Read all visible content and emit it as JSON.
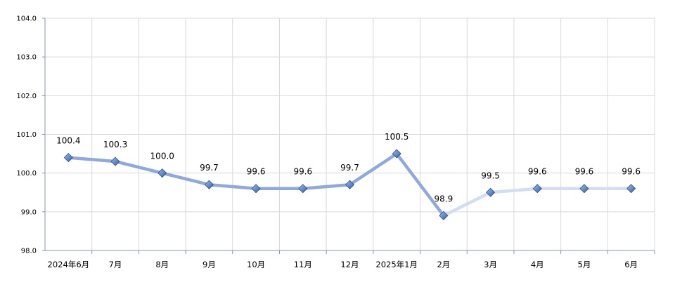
{
  "chart_data": {
    "type": "line",
    "categories": [
      "2024年6月",
      "7月",
      "8月",
      "9月",
      "10月",
      "11月",
      "12月",
      "2025年1月",
      "2月",
      "3月",
      "4月",
      "5月",
      "6月"
    ],
    "values": [
      100.4,
      100.3,
      100.0,
      99.7,
      99.6,
      99.6,
      99.7,
      100.5,
      98.9,
      99.5,
      99.6,
      99.6,
      99.6
    ],
    "data_labels": [
      "100.4",
      "100.3",
      "100.0",
      "99.7",
      "99.6",
      "99.6",
      "99.7",
      "100.5",
      "98.9",
      "99.5",
      "99.6",
      "99.6",
      "99.6"
    ],
    "y_ticks": [
      "98.0",
      "99.0",
      "100.0",
      "101.0",
      "102.0",
      "103.0",
      "104.0"
    ],
    "ylim": [
      98,
      104
    ],
    "grid": true,
    "legend": "none",
    "colors": {
      "line_dark": "#8fa9dc",
      "line_light": "#d3def2",
      "marker_fill": "#4a7cc2",
      "marker_stroke": "#2a4f8a",
      "grid": "#d9d9d9",
      "axis": "#8497b0"
    }
  }
}
